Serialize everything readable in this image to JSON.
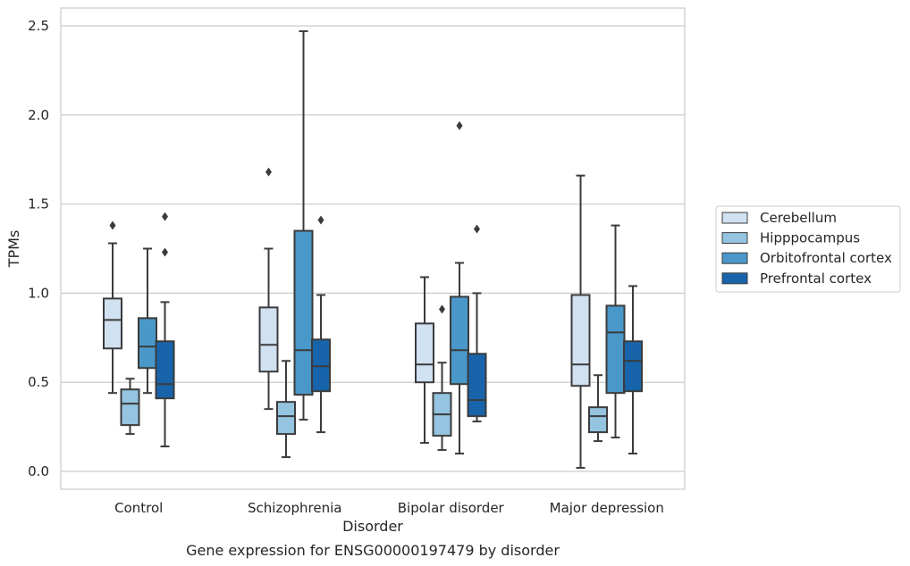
{
  "chart_data": {
    "type": "box",
    "title": "",
    "caption": "Gene expression for ENSG00000197479 by disorder",
    "xlabel": "Disorder",
    "ylabel": "TPMs",
    "ylim": [
      -0.1,
      2.6
    ],
    "yticks": [
      "0.0",
      "0.5",
      "1.0",
      "1.5",
      "2.0",
      "2.5"
    ],
    "grid": "horizontal",
    "legend_position": "right",
    "categories": [
      "Control",
      "Schizophrenia",
      "Bipolar disorder",
      "Major depression"
    ],
    "series": [
      {
        "name": "Cerebellum",
        "color": "#d0e1f2",
        "boxes": [
          {
            "whisker_low": 0.44,
            "q1": 0.69,
            "median": 0.85,
            "q3": 0.97,
            "whisker_high": 1.28,
            "outliers": [
              1.38
            ]
          },
          {
            "whisker_low": 0.35,
            "q1": 0.56,
            "median": 0.71,
            "q3": 0.92,
            "whisker_high": 1.25,
            "outliers": [
              1.68
            ]
          },
          {
            "whisker_low": 0.16,
            "q1": 0.5,
            "median": 0.6,
            "q3": 0.83,
            "whisker_high": 1.09,
            "outliers": []
          },
          {
            "whisker_low": 0.02,
            "q1": 0.48,
            "median": 0.6,
            "q3": 0.99,
            "whisker_high": 1.66,
            "outliers": []
          }
        ]
      },
      {
        "name": "Hipppocampus",
        "color": "#94c4df",
        "boxes": [
          {
            "whisker_low": 0.21,
            "q1": 0.26,
            "median": 0.38,
            "q3": 0.46,
            "whisker_high": 0.52,
            "outliers": []
          },
          {
            "whisker_low": 0.08,
            "q1": 0.21,
            "median": 0.31,
            "q3": 0.39,
            "whisker_high": 0.62,
            "outliers": []
          },
          {
            "whisker_low": 0.12,
            "q1": 0.2,
            "median": 0.32,
            "q3": 0.44,
            "whisker_high": 0.61,
            "outliers": [
              0.91
            ]
          },
          {
            "whisker_low": 0.17,
            "q1": 0.22,
            "median": 0.31,
            "q3": 0.36,
            "whisker_high": 0.54,
            "outliers": []
          }
        ]
      },
      {
        "name": "Orbitofrontal cortex",
        "color": "#4a98c9",
        "boxes": [
          {
            "whisker_low": 0.44,
            "q1": 0.58,
            "median": 0.7,
            "q3": 0.86,
            "whisker_high": 1.25,
            "outliers": []
          },
          {
            "whisker_low": 0.29,
            "q1": 0.43,
            "median": 0.68,
            "q3": 1.35,
            "whisker_high": 2.47,
            "outliers": []
          },
          {
            "whisker_low": 0.1,
            "q1": 0.49,
            "median": 0.68,
            "q3": 0.98,
            "whisker_high": 1.17,
            "outliers": [
              1.94
            ]
          },
          {
            "whisker_low": 0.19,
            "q1": 0.44,
            "median": 0.78,
            "q3": 0.93,
            "whisker_high": 1.38,
            "outliers": []
          }
        ]
      },
      {
        "name": "Prefrontal cortex",
        "color": "#1764ab",
        "boxes": [
          {
            "whisker_low": 0.14,
            "q1": 0.41,
            "median": 0.49,
            "q3": 0.73,
            "whisker_high": 0.95,
            "outliers": [
              1.23,
              1.43
            ]
          },
          {
            "whisker_low": 0.22,
            "q1": 0.45,
            "median": 0.59,
            "q3": 0.74,
            "whisker_high": 0.99,
            "outliers": [
              1.41
            ]
          },
          {
            "whisker_low": 0.28,
            "q1": 0.31,
            "median": 0.4,
            "q3": 0.66,
            "whisker_high": 1.0,
            "outliers": [
              1.36
            ]
          },
          {
            "whisker_low": 0.1,
            "q1": 0.45,
            "median": 0.62,
            "q3": 0.73,
            "whisker_high": 1.04,
            "outliers": []
          }
        ]
      }
    ]
  }
}
